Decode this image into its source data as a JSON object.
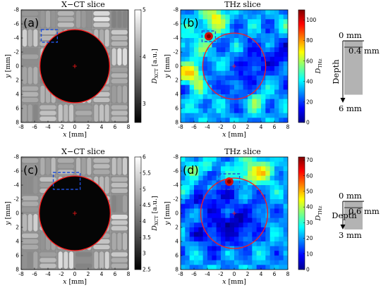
{
  "figure": {
    "panels": [
      {
        "id": "a",
        "label": "(a)",
        "title": "X−CT slice",
        "map": "xct",
        "seed": 11,
        "xlabel_var": "x",
        "xlabel_unit": " [mm]",
        "ylabel_var": "y",
        "ylabel_unit": " [mm]",
        "cbar_label_main": "D",
        "cbar_label_sub": "XCT",
        "cbar_label_unit": " [a.u.]",
        "cbar_ticks": [
          "3",
          "4",
          "5"
        ],
        "cbar_range": [
          2.6,
          5
        ],
        "xticks": [
          "-8",
          "-6",
          "-4",
          "-2",
          "0",
          "2",
          "4",
          "6",
          "8"
        ],
        "yticks": [
          "-8",
          "-6",
          "-4",
          "-2",
          "0",
          "2",
          "4",
          "6",
          "8"
        ],
        "circle": {
          "cx": 0,
          "cy": 0,
          "r": 5.2
        },
        "dashed_box": {
          "x0": -5,
          "y0": -5.2,
          "x1": -2.6,
          "y1": -3.4
        }
      },
      {
        "id": "b",
        "label": "(b)",
        "title": "THz slice",
        "map": "thz",
        "seed": 23,
        "xlabel_var": "x",
        "xlabel_unit": " [mm]",
        "ylabel_var": "y",
        "ylabel_unit": " [mm]",
        "cbar_label_main": "D",
        "cbar_label_sub": "THz",
        "cbar_label_unit": "",
        "cbar_ticks": [
          "0",
          "20",
          "40",
          "60",
          "80",
          "100"
        ],
        "cbar_range": [
          0,
          110
        ],
        "xticks": [
          "-8",
          "-6",
          "-4",
          "-2",
          "0",
          "2",
          "4",
          "6",
          "8"
        ],
        "yticks": [
          "-8",
          "-6",
          "-4",
          "-2",
          "0",
          "2",
          "4",
          "6",
          "8"
        ],
        "circle": {
          "cx": 0,
          "cy": 0,
          "r": 4.7
        },
        "dashed_box": {
          "x0": -4.8,
          "y0": -5,
          "x1": -2.8,
          "y1": -3.5
        },
        "depth": {
          "top": "0 mm",
          "thickness": "0.4 mm",
          "bottom": "6 mm",
          "label": "Depth",
          "fraction": 0.067
        }
      },
      {
        "id": "c",
        "label": "(c)",
        "title": "X−CT slice",
        "map": "xct",
        "seed": 37,
        "xlabel_var": "x",
        "xlabel_unit": " [mm]",
        "ylabel_var": "y",
        "ylabel_unit": " [mm]",
        "cbar_label_main": "D",
        "cbar_label_sub": "XCT",
        "cbar_label_unit": " [a.u.]",
        "cbar_ticks": [
          "2.5",
          "3",
          "3.5",
          "4",
          "4.5",
          "5",
          "5.5",
          "6"
        ],
        "cbar_range": [
          2.5,
          6
        ],
        "xticks": [
          "-8",
          "-6",
          "-4",
          "-2",
          "0",
          "2",
          "4",
          "6",
          "8"
        ],
        "yticks": [
          "-8",
          "-6",
          "-4",
          "-2",
          "0",
          "2",
          "4",
          "6",
          "8"
        ],
        "circle": {
          "cx": 0,
          "cy": 0,
          "r": 5.3
        },
        "dashed_box": {
          "x0": -3.2,
          "y0": -5.8,
          "x1": 0.8,
          "y1": -3.4
        }
      },
      {
        "id": "d",
        "label": "(d)",
        "title": "THz slice",
        "map": "thz",
        "seed": 53,
        "xlabel_var": "x",
        "xlabel_unit": " [mm]",
        "ylabel_var": "y",
        "ylabel_unit": " [mm]",
        "cbar_label_main": "D",
        "cbar_label_sub": "THz",
        "cbar_label_unit": "",
        "cbar_ticks": [
          "0",
          "10",
          "20",
          "30",
          "40",
          "50",
          "60",
          "70"
        ],
        "cbar_range": [
          0,
          72
        ],
        "xticks": [
          "-8",
          "-6",
          "-4",
          "-2",
          "0",
          "2",
          "4",
          "6",
          "8"
        ],
        "yticks": [
          "-8",
          "-6",
          "-4",
          "-2",
          "0",
          "2",
          "4",
          "6",
          "8"
        ],
        "circle": {
          "cx": 0,
          "cy": 0,
          "r": 5.0
        },
        "dashed_box": {
          "x0": -2.3,
          "y0": -5.6,
          "x1": 0.8,
          "y1": -3.4
        },
        "depth": {
          "top": "0 mm",
          "thickness": "0.6 mm",
          "bottom": "3 mm",
          "label": "Depth",
          "fraction": 0.2
        }
      }
    ]
  }
}
